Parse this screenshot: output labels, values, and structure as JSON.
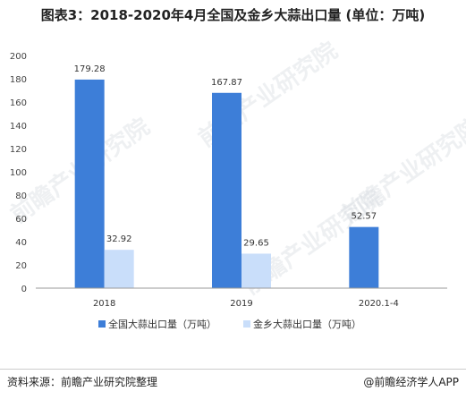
{
  "title": "图表3：2018-2020年4月全国及金乡大蒜出口量 (单位：万吨)",
  "source": "资料来源：前瞻产业研究院整理",
  "credit": "@前瞻经济学人APP",
  "watermark": "前瞻产业研究院",
  "colors": {
    "series1": "#3d7ed8",
    "series2": "#c9defa",
    "axis": "#999999"
  },
  "chart_data": {
    "type": "bar",
    "categories": [
      "2018",
      "2019",
      "2020.1-4"
    ],
    "series": [
      {
        "name": "全国大蒜出口量（万吨）",
        "values": [
          179.28,
          167.87,
          52.57
        ],
        "labels": [
          "179.28",
          "167.87",
          "52.57"
        ]
      },
      {
        "name": "金乡大蒜出口量（万吨）",
        "values": [
          32.92,
          29.65,
          null
        ],
        "labels": [
          "32.92",
          "29.65",
          ""
        ]
      }
    ],
    "yticks": [
      "0",
      "20",
      "40",
      "60",
      "80",
      "100",
      "120",
      "140",
      "160",
      "180",
      "200"
    ],
    "ylim": [
      0,
      200
    ],
    "legend": "bottom"
  }
}
